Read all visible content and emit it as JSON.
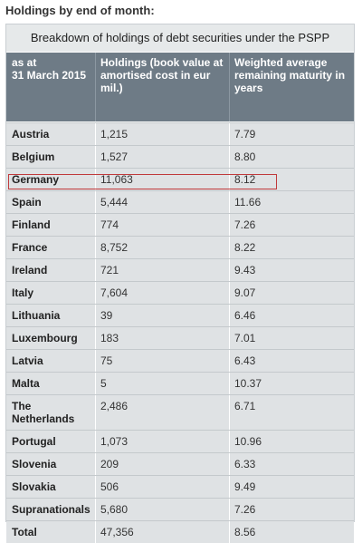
{
  "heading": "Holdings by end of month:",
  "table": {
    "caption": "Breakdown of holdings of debt securities under the PSPP",
    "headers": [
      "as at\n31 March 2015",
      "Holdings (book value at\namortised cost in eur\nmil.)",
      "Weighted average\nremaining maturity in\nyears"
    ],
    "rows": [
      {
        "country": "Austria",
        "holdings": "1,215",
        "maturity": "7.79"
      },
      {
        "country": "Belgium",
        "holdings": "1,527",
        "maturity": "8.80"
      },
      {
        "country": "Germany",
        "holdings": "11,063",
        "maturity": "8.12"
      },
      {
        "country": "Spain",
        "holdings": "5,444",
        "maturity": "11.66"
      },
      {
        "country": "Finland",
        "holdings": "774",
        "maturity": "7.26"
      },
      {
        "country": "France",
        "holdings": "8,752",
        "maturity": "8.22"
      },
      {
        "country": "Ireland",
        "holdings": "721",
        "maturity": "9.43"
      },
      {
        "country": "Italy",
        "holdings": "7,604",
        "maturity": "9.07"
      },
      {
        "country": "Lithuania",
        "holdings": "39",
        "maturity": "6.46"
      },
      {
        "country": "Luxembourg",
        "holdings": "183",
        "maturity": "7.01"
      },
      {
        "country": "Latvia",
        "holdings": "75",
        "maturity": "6.43"
      },
      {
        "country": "Malta",
        "holdings": "5",
        "maturity": "10.37"
      },
      {
        "country": "The\nNetherlands",
        "holdings": "2,486",
        "maturity": "6.71"
      },
      {
        "country": "Portugal",
        "holdings": "1,073",
        "maturity": "10.96"
      },
      {
        "country": "Slovenia",
        "holdings": "209",
        "maturity": "6.33"
      },
      {
        "country": "Slovakia",
        "holdings": "506",
        "maturity": "9.49"
      },
      {
        "country": "Supranationals",
        "holdings": "5,680",
        "maturity": "7.26"
      },
      {
        "country": "Total",
        "holdings": "47,356",
        "maturity": "8.56"
      }
    ]
  },
  "colors": {
    "header_bg": "#6e7b86",
    "row_bg": "#dfe2e4",
    "highlight_border": "#c0393b"
  }
}
